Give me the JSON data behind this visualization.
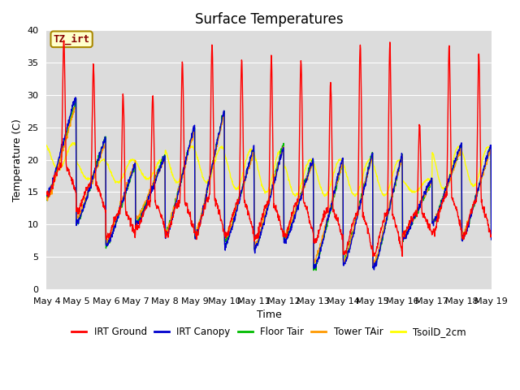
{
  "title": "Surface Temperatures",
  "xlabel": "Time",
  "ylabel": "Temperature (C)",
  "ylim": [
    0,
    40
  ],
  "bg_color": "#dcdcdc",
  "fig_color": "#ffffff",
  "annotation_text": "TZ_irt",
  "annotation_color": "#880000",
  "annotation_bg": "#ffffcc",
  "annotation_border": "#aa8800",
  "x_tick_labels": [
    "May 4",
    "May 5",
    "May 6",
    "May 7",
    "May 8",
    "May 9",
    "May 10",
    "May 11",
    "May 12",
    "May 13",
    "May 14",
    "May 15",
    "May 16",
    "May 17",
    "May 18",
    "May 19"
  ],
  "legend_entries": [
    "IRT Ground",
    "IRT Canopy",
    "Floor Tair",
    "Tower TAir",
    "TsoilD_2cm"
  ],
  "line_colors": [
    "#ff0000",
    "#0000cc",
    "#00bb00",
    "#ff9900",
    "#ffff00"
  ],
  "yticks": [
    0,
    5,
    10,
    15,
    20,
    25,
    30,
    35,
    40
  ],
  "title_fontsize": 12,
  "axis_fontsize": 9,
  "tick_fontsize": 8
}
